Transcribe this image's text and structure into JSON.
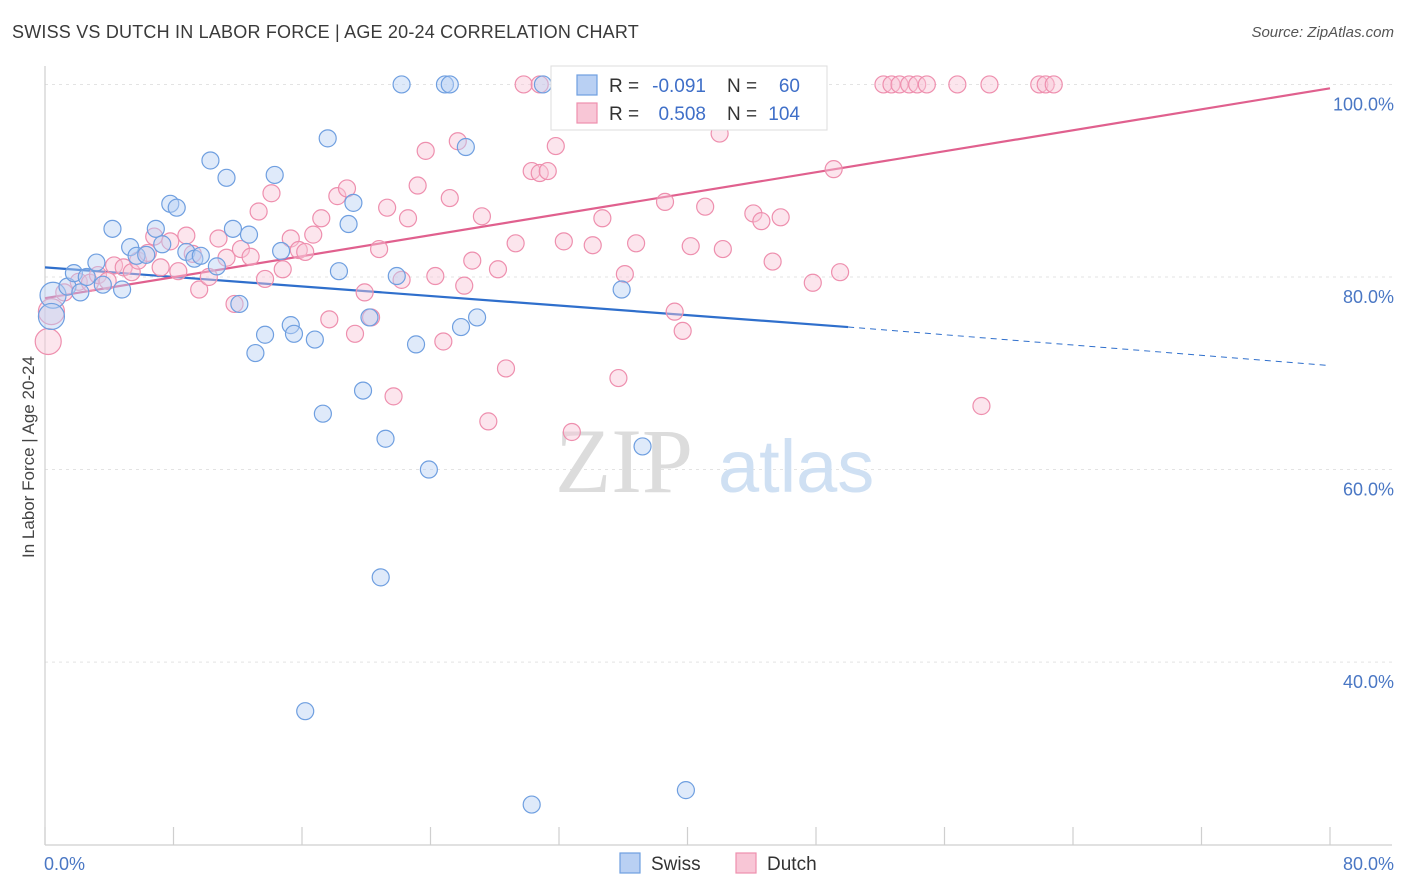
{
  "title": "SWISS VS DUTCH IN LABOR FORCE | AGE 20-24 CORRELATION CHART",
  "source": "Source: ZipAtlas.com",
  "watermark": {
    "zip": "ZIP",
    "atlas": "atlas"
  },
  "chart_data": {
    "type": "scatter",
    "ylabel": "In Labor Force | Age 20-24",
    "xlim": [
      0,
      80
    ],
    "ylim": [
      21,
      101.5
    ],
    "x_tick_labels": [
      {
        "value": 0,
        "label": "0.0%"
      },
      {
        "value": 80,
        "label": "80.0%"
      }
    ],
    "y_tick_labels": [
      {
        "value": 100,
        "label": "100.0%"
      },
      {
        "value": 80,
        "label": "80.0%"
      },
      {
        "value": 60,
        "label": "60.0%"
      },
      {
        "value": 40,
        "label": "40.0%"
      }
    ],
    "x_minor_ticks": [
      0,
      8,
      16,
      24,
      32,
      40,
      48,
      56,
      64,
      72,
      80
    ],
    "grid": true,
    "legend": {
      "position": "top-center",
      "entries": [
        {
          "series": "Swiss",
          "r_label": "R =",
          "r_value": "-0.091",
          "n_label": "N =",
          "n_value": "60"
        },
        {
          "series": "Dutch",
          "r_label": "R =",
          "r_value": "0.508",
          "n_label": "N =",
          "n_value": "104"
        }
      ]
    },
    "series": [
      {
        "name": "Swiss",
        "color": "#6f9fe0",
        "fill": "#b9d0f3",
        "trend_color": "#2f6fcc",
        "trend": {
          "x0": 0,
          "y0": 81.0,
          "x1": 50,
          "y1": 74.8,
          "dash_x1": 80,
          "dash_y1": 70.8
        },
        "points": [
          [
            0.5,
            78.1
          ],
          [
            1.4,
            79.0
          ],
          [
            1.8,
            80.4
          ],
          [
            2.2,
            78.4
          ],
          [
            3.2,
            81.5
          ],
          [
            3.6,
            79.2
          ],
          [
            4.2,
            85.0
          ],
          [
            4.8,
            78.7
          ],
          [
            5.3,
            83.1
          ],
          [
            5.7,
            82.2
          ],
          [
            6.3,
            82.3
          ],
          [
            6.9,
            85.0
          ],
          [
            7.3,
            83.4
          ],
          [
            7.8,
            87.6
          ],
          [
            8.2,
            87.2
          ],
          [
            8.8,
            82.6
          ],
          [
            9.3,
            81.9
          ],
          [
            9.7,
            82.2
          ],
          [
            10.3,
            92.1
          ],
          [
            10.7,
            81.1
          ],
          [
            11.3,
            90.3
          ],
          [
            11.7,
            85.0
          ],
          [
            12.1,
            77.2
          ],
          [
            12.7,
            84.4
          ],
          [
            13.1,
            72.1
          ],
          [
            13.7,
            74.0
          ],
          [
            14.3,
            90.6
          ],
          [
            14.7,
            82.7
          ],
          [
            15.3,
            75.0
          ],
          [
            15.5,
            74.1
          ],
          [
            16.2,
            34.9
          ],
          [
            16.8,
            73.5
          ],
          [
            17.3,
            65.8
          ],
          [
            17.6,
            94.4
          ],
          [
            18.3,
            80.6
          ],
          [
            18.9,
            85.5
          ],
          [
            19.2,
            87.7
          ],
          [
            19.8,
            68.2
          ],
          [
            20.2,
            75.8
          ],
          [
            20.9,
            48.8
          ],
          [
            21.2,
            63.2
          ],
          [
            21.9,
            80.1
          ],
          [
            22.2,
            100.0
          ],
          [
            23.1,
            73.0
          ],
          [
            23.9,
            60.0
          ],
          [
            24.9,
            100.0
          ],
          [
            25.2,
            100.0
          ],
          [
            25.9,
            74.8
          ],
          [
            26.2,
            93.5
          ],
          [
            26.9,
            75.8
          ],
          [
            30.3,
            25.2
          ],
          [
            31.0,
            100.0
          ],
          [
            35.9,
            78.7
          ],
          [
            37.2,
            62.4
          ],
          [
            39.9,
            26.7
          ],
          [
            44.9,
            100.0
          ],
          [
            45.2,
            100.0
          ],
          [
            46.0,
            100.0
          ],
          [
            0.4,
            75.9
          ],
          [
            2.6,
            80.0
          ]
        ]
      },
      {
        "name": "Dutch",
        "color": "#ee8fae",
        "fill": "#f8c6d6",
        "trend_color": "#e0608e",
        "trend": {
          "x0": 0,
          "y0": 77.8,
          "x1": 80,
          "y1": 99.6
        },
        "points": [
          [
            0.2,
            73.3
          ],
          [
            0.4,
            76.4
          ],
          [
            1.2,
            78.4
          ],
          [
            2.1,
            79.5
          ],
          [
            2.8,
            79.4
          ],
          [
            3.3,
            80.2
          ],
          [
            3.9,
            79.6
          ],
          [
            4.3,
            81.2
          ],
          [
            4.9,
            81.0
          ],
          [
            5.4,
            80.5
          ],
          [
            5.8,
            81.7
          ],
          [
            6.4,
            82.5
          ],
          [
            6.8,
            84.2
          ],
          [
            7.2,
            81.0
          ],
          [
            7.8,
            83.7
          ],
          [
            8.3,
            80.6
          ],
          [
            8.8,
            84.3
          ],
          [
            9.2,
            82.4
          ],
          [
            9.6,
            78.7
          ],
          [
            10.2,
            80.0
          ],
          [
            10.8,
            84.0
          ],
          [
            11.3,
            82.0
          ],
          [
            11.8,
            77.2
          ],
          [
            12.2,
            82.9
          ],
          [
            12.8,
            82.1
          ],
          [
            13.3,
            86.8
          ],
          [
            13.7,
            79.8
          ],
          [
            14.1,
            88.7
          ],
          [
            14.8,
            80.8
          ],
          [
            15.3,
            84.0
          ],
          [
            15.8,
            82.8
          ],
          [
            16.2,
            82.6
          ],
          [
            16.7,
            84.4
          ],
          [
            17.2,
            86.1
          ],
          [
            17.7,
            75.6
          ],
          [
            18.2,
            88.4
          ],
          [
            18.8,
            89.2
          ],
          [
            19.3,
            74.1
          ],
          [
            19.9,
            78.4
          ],
          [
            20.3,
            75.8
          ],
          [
            20.8,
            82.9
          ],
          [
            21.3,
            87.2
          ],
          [
            21.7,
            67.6
          ],
          [
            22.2,
            79.7
          ],
          [
            22.6,
            86.1
          ],
          [
            23.2,
            89.5
          ],
          [
            23.7,
            93.1
          ],
          [
            24.3,
            80.1
          ],
          [
            24.8,
            73.3
          ],
          [
            25.2,
            88.2
          ],
          [
            25.7,
            94.1
          ],
          [
            26.1,
            79.1
          ],
          [
            26.6,
            81.7
          ],
          [
            27.2,
            86.3
          ],
          [
            27.6,
            65.0
          ],
          [
            28.2,
            80.8
          ],
          [
            28.7,
            70.5
          ],
          [
            29.3,
            83.5
          ],
          [
            29.8,
            100.0
          ],
          [
            30.3,
            91.0
          ],
          [
            30.8,
            90.8
          ],
          [
            31.3,
            91.0
          ],
          [
            31.8,
            93.6
          ],
          [
            32.3,
            83.7
          ],
          [
            32.8,
            63.9
          ],
          [
            33.3,
            100.0
          ],
          [
            34.1,
            83.3
          ],
          [
            34.7,
            86.1
          ],
          [
            35.2,
            100.0
          ],
          [
            35.7,
            69.5
          ],
          [
            36.1,
            80.3
          ],
          [
            36.8,
            83.5
          ],
          [
            37.3,
            100.0
          ],
          [
            38.6,
            87.8
          ],
          [
            39.2,
            76.4
          ],
          [
            39.7,
            74.4
          ],
          [
            40.2,
            83.2
          ],
          [
            41.1,
            87.3
          ],
          [
            42.0,
            94.9
          ],
          [
            42.2,
            82.9
          ],
          [
            43.2,
            100.0
          ],
          [
            44.1,
            86.6
          ],
          [
            44.6,
            85.8
          ],
          [
            45.3,
            81.6
          ],
          [
            45.8,
            86.2
          ],
          [
            47.8,
            79.4
          ],
          [
            49.1,
            91.2
          ],
          [
            49.5,
            80.5
          ],
          [
            52.2,
            100.0
          ],
          [
            52.7,
            100.0
          ],
          [
            53.2,
            100.0
          ],
          [
            53.8,
            100.0
          ],
          [
            54.3,
            100.0
          ],
          [
            54.9,
            100.0
          ],
          [
            56.8,
            100.0
          ],
          [
            58.3,
            66.6
          ],
          [
            58.8,
            100.0
          ],
          [
            61.9,
            100.0
          ],
          [
            62.3,
            100.0
          ],
          [
            62.8,
            100.0
          ],
          [
            45.0,
            100.0
          ],
          [
            33.0,
            100.0
          ],
          [
            30.8,
            100.0
          ],
          [
            37.8,
            100.0
          ]
        ]
      }
    ]
  }
}
